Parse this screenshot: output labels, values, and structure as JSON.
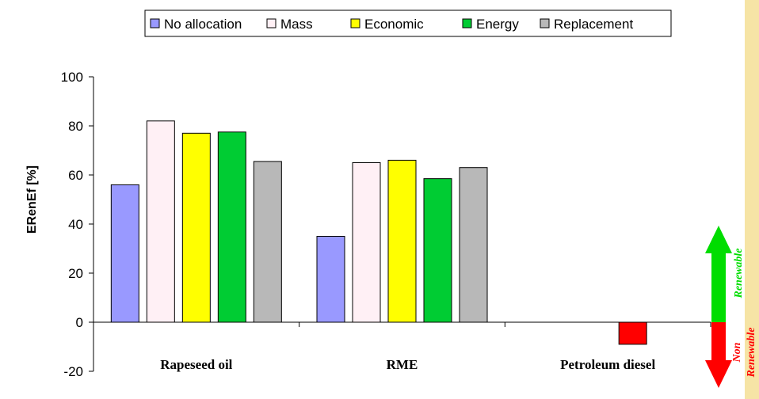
{
  "chart_data": {
    "type": "bar",
    "title": "",
    "xlabel": "",
    "ylabel": "ERenEf [%]",
    "ylim": [
      -20,
      100
    ],
    "yticks": [
      -20,
      0,
      20,
      40,
      60,
      80,
      100
    ],
    "grid": false,
    "legend_position": "top",
    "categories": [
      "Rapeseed oil",
      "RME",
      "Petroleum diesel"
    ],
    "series": [
      {
        "name": "No allocation",
        "color": "#9999ff",
        "values": [
          56,
          35,
          null
        ]
      },
      {
        "name": "Mass",
        "color": "#fff0f5",
        "values": [
          82,
          65,
          null
        ]
      },
      {
        "name": "Economic",
        "color": "#ffff00",
        "values": [
          77,
          66,
          null
        ]
      },
      {
        "name": "Energy",
        "color": "#00cc33",
        "values": [
          77.5,
          58.5,
          null
        ]
      },
      {
        "name": "Replacement",
        "color": "#b8b8b8",
        "values": [
          65.5,
          63,
          null
        ]
      }
    ],
    "extra_bars": [
      {
        "category": "Petroleum diesel",
        "value": -9,
        "color": "#ff0000"
      }
    ],
    "annotations": {
      "renewable_label": "Renewable",
      "non_renewable_label_1": "Non",
      "non_renewable_label_2": "Renewable",
      "renewable_color": "#00dd00",
      "non_renewable_color": "#ff0000"
    }
  }
}
